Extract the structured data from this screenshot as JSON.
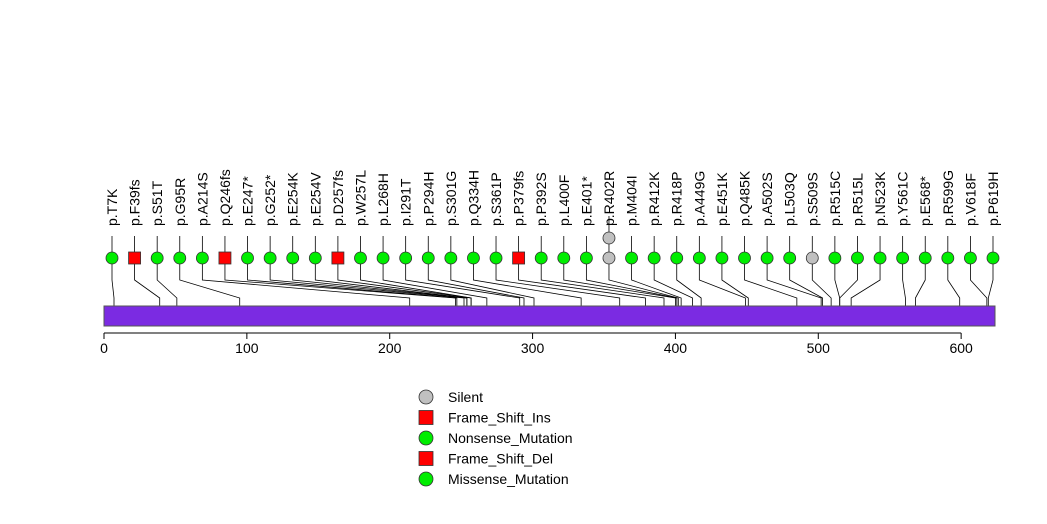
{
  "chart_data": {
    "type": "lollipop",
    "xlim": [
      0,
      623
    ],
    "ticks": [
      0,
      100,
      200,
      300,
      400,
      500,
      600
    ],
    "tick_labels": [
      "0",
      "100",
      "200",
      "300",
      "400",
      "500",
      "600"
    ],
    "protein_bar_color": "#7B2BE2",
    "mutations": [
      {
        "label": "p.T7K",
        "pos": 7,
        "type": "Missense_Mutation",
        "count": 1
      },
      {
        "label": "p.F39fs",
        "pos": 39,
        "type": "Frame_Shift_Del",
        "count": 1
      },
      {
        "label": "p.S51T",
        "pos": 51,
        "type": "Missense_Mutation",
        "count": 1
      },
      {
        "label": "p.G95R",
        "pos": 95,
        "type": "Missense_Mutation",
        "count": 1
      },
      {
        "label": "p.A214S",
        "pos": 214,
        "type": "Missense_Mutation",
        "count": 1
      },
      {
        "label": "p.Q246fs",
        "pos": 246,
        "type": "Frame_Shift_Del",
        "count": 1
      },
      {
        "label": "p.E247*",
        "pos": 247,
        "type": "Nonsense_Mutation",
        "count": 1
      },
      {
        "label": "p.G252*",
        "pos": 252,
        "type": "Nonsense_Mutation",
        "count": 1
      },
      {
        "label": "p.E254K",
        "pos": 254,
        "type": "Missense_Mutation",
        "count": 1
      },
      {
        "label": "p.E254V",
        "pos": 254,
        "type": "Missense_Mutation",
        "count": 1
      },
      {
        "label": "p.D257fs",
        "pos": 257,
        "type": "Frame_Shift_Del",
        "count": 1
      },
      {
        "label": "p.W257L",
        "pos": 257,
        "type": "Missense_Mutation",
        "count": 1
      },
      {
        "label": "p.L268H",
        "pos": 268,
        "type": "Missense_Mutation",
        "count": 1
      },
      {
        "label": "p.I291T",
        "pos": 291,
        "type": "Missense_Mutation",
        "count": 1
      },
      {
        "label": "p.P294H",
        "pos": 294,
        "type": "Missense_Mutation",
        "count": 1
      },
      {
        "label": "p.S301G",
        "pos": 301,
        "type": "Missense_Mutation",
        "count": 1
      },
      {
        "label": "p.Q334H",
        "pos": 334,
        "type": "Missense_Mutation",
        "count": 1
      },
      {
        "label": "p.S361P",
        "pos": 361,
        "type": "Missense_Mutation",
        "count": 1
      },
      {
        "label": "p.P379fs",
        "pos": 379,
        "type": "Frame_Shift_Del",
        "count": 1
      },
      {
        "label": "p.P392S",
        "pos": 392,
        "type": "Missense_Mutation",
        "count": 1
      },
      {
        "label": "p.L400F",
        "pos": 400,
        "type": "Missense_Mutation",
        "count": 1
      },
      {
        "label": "p.E401*",
        "pos": 401,
        "type": "Nonsense_Mutation",
        "count": 1
      },
      {
        "label": "p.R402R",
        "pos": 402,
        "type": "Silent",
        "count": 2
      },
      {
        "label": "p.M404I",
        "pos": 404,
        "type": "Missense_Mutation",
        "count": 1
      },
      {
        "label": "p.R412K",
        "pos": 412,
        "type": "Missense_Mutation",
        "count": 1
      },
      {
        "label": "p.R418P",
        "pos": 418,
        "type": "Missense_Mutation",
        "count": 1
      },
      {
        "label": "p.A449G",
        "pos": 449,
        "type": "Missense_Mutation",
        "count": 1
      },
      {
        "label": "p.E451K",
        "pos": 451,
        "type": "Missense_Mutation",
        "count": 1
      },
      {
        "label": "p.Q485K",
        "pos": 485,
        "type": "Missense_Mutation",
        "count": 1
      },
      {
        "label": "p.A502S",
        "pos": 502,
        "type": "Missense_Mutation",
        "count": 1
      },
      {
        "label": "p.L503Q",
        "pos": 503,
        "type": "Missense_Mutation",
        "count": 1
      },
      {
        "label": "p.S509S",
        "pos": 509,
        "type": "Silent",
        "count": 1
      },
      {
        "label": "p.R515C",
        "pos": 515,
        "type": "Missense_Mutation",
        "count": 1
      },
      {
        "label": "p.R515L",
        "pos": 515,
        "type": "Missense_Mutation",
        "count": 1
      },
      {
        "label": "p.N523K",
        "pos": 523,
        "type": "Missense_Mutation",
        "count": 1
      },
      {
        "label": "p.Y561C",
        "pos": 561,
        "type": "Missense_Mutation",
        "count": 1
      },
      {
        "label": "p.E568*",
        "pos": 568,
        "type": "Nonsense_Mutation",
        "count": 1
      },
      {
        "label": "p.R599G",
        "pos": 599,
        "type": "Missense_Mutation",
        "count": 1
      },
      {
        "label": "p.V618F",
        "pos": 618,
        "type": "Missense_Mutation",
        "count": 1
      },
      {
        "label": "p.P619H",
        "pos": 619,
        "type": "Missense_Mutation",
        "count": 1
      }
    ],
    "legend": [
      {
        "label": "Silent",
        "shape": "circle",
        "color": "#C0C0C0"
      },
      {
        "label": "Frame_Shift_Ins",
        "shape": "square",
        "color": "#FF0000"
      },
      {
        "label": "Nonsense_Mutation",
        "shape": "circle",
        "color": "#00EE00"
      },
      {
        "label": "Frame_Shift_Del",
        "shape": "square",
        "color": "#FF0000"
      },
      {
        "label": "Missense_Mutation",
        "shape": "circle",
        "color": "#00EE00"
      }
    ]
  }
}
